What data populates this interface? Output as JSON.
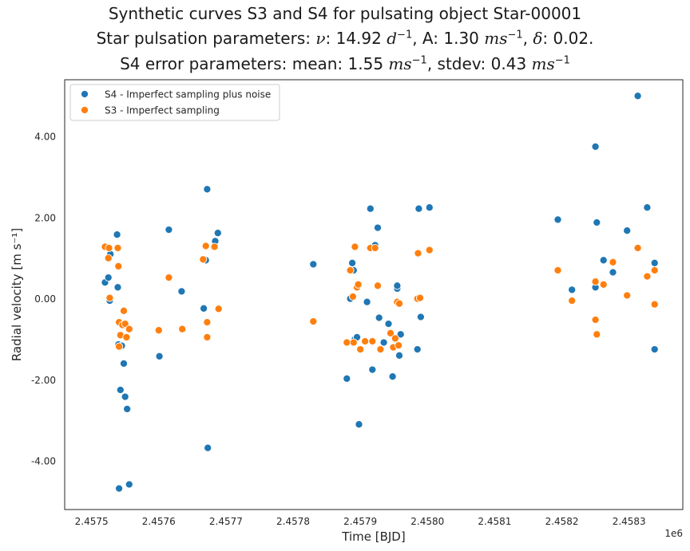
{
  "chart_data": {
    "type": "scatter",
    "title": {
      "line1": "Synthetic curves S3 and S4 for pulsating object Star-00001",
      "line2_prefix": "Star pulsation parameters: ",
      "nu_symbol": "ν",
      "nu_value": ": 14.92 ",
      "unit_d": "d",
      "exp": "−1",
      "amp_label": ", A: 1.30 ",
      "unit_ms": "ms",
      "delta_symbol": "δ",
      "delta_value": ": 0.02.",
      "line3_prefix": "S4 error parameters: mean: 1.55 ",
      "stdev_label": ", stdev: 0.43 "
    },
    "xlabel": "Time [BJD]",
    "ylabel": "Radial velocity [m s⁻¹]",
    "x_offset_label": "1e6",
    "xlim": [
      2.45746,
      2.45838
    ],
    "ylim": [
      -5.2,
      5.4
    ],
    "x_ticks": [
      2.4575,
      2.4576,
      2.4577,
      2.4578,
      2.4579,
      2.458,
      2.4581,
      2.4582,
      2.4583
    ],
    "y_ticks": [
      -4.0,
      -2.0,
      0.0,
      2.0,
      4.0
    ],
    "grid": false,
    "legend_position": "top-left",
    "series": [
      {
        "name": "S4 - Imperfect sampling plus noise",
        "color": "#1f77b4",
        "points": [
          [
            2.45752,
            0.4
          ],
          [
            2.457525,
            0.52
          ],
          [
            2.457527,
            -0.05
          ],
          [
            2.457528,
            1.1
          ],
          [
            2.457538,
            1.58
          ],
          [
            2.457539,
            0.28
          ],
          [
            2.45754,
            -1.13
          ],
          [
            2.457541,
            -4.68
          ],
          [
            2.457543,
            -2.25
          ],
          [
            2.457545,
            -1.16
          ],
          [
            2.457548,
            -1.6
          ],
          [
            2.45755,
            -2.42
          ],
          [
            2.457553,
            -2.72
          ],
          [
            2.457556,
            -4.58
          ],
          [
            2.457601,
            -1.42
          ],
          [
            2.457615,
            1.7
          ],
          [
            2.457634,
            0.18
          ],
          [
            2.457667,
            -0.24
          ],
          [
            2.45767,
            0.95
          ],
          [
            2.457672,
            2.7
          ],
          [
            2.457673,
            -3.68
          ],
          [
            2.457684,
            1.42
          ],
          [
            2.457688,
            1.62
          ],
          [
            2.45783,
            0.85
          ],
          [
            2.45788,
            -1.97
          ],
          [
            2.457885,
            0.0
          ],
          [
            2.457888,
            0.88
          ],
          [
            2.45789,
            0.7
          ],
          [
            2.457892,
            -1.0
          ],
          [
            2.457895,
            -0.95
          ],
          [
            2.457898,
            -3.1
          ],
          [
            2.45791,
            -0.08
          ],
          [
            2.457915,
            2.22
          ],
          [
            2.457918,
            -1.75
          ],
          [
            2.457922,
            1.32
          ],
          [
            2.457926,
            1.75
          ],
          [
            2.457928,
            -0.47
          ],
          [
            2.457935,
            -1.08
          ],
          [
            2.457942,
            -0.62
          ],
          [
            2.457948,
            -1.92
          ],
          [
            2.457952,
            -1.0
          ],
          [
            2.457955,
            0.25
          ],
          [
            2.457955,
            0.32
          ],
          [
            2.457958,
            -1.4
          ],
          [
            2.45796,
            -0.88
          ],
          [
            2.457985,
            -1.25
          ],
          [
            2.457987,
            2.22
          ],
          [
            2.45799,
            -0.45
          ],
          [
            2.458003,
            2.25
          ],
          [
            2.458194,
            1.95
          ],
          [
            2.458215,
            0.22
          ],
          [
            2.45825,
            0.28
          ],
          [
            2.45825,
            3.75
          ],
          [
            2.458252,
            1.88
          ],
          [
            2.458262,
            0.95
          ],
          [
            2.458276,
            0.65
          ],
          [
            2.458297,
            1.68
          ],
          [
            2.458313,
            5.0
          ],
          [
            2.458327,
            2.25
          ],
          [
            2.458338,
            0.88
          ],
          [
            2.458338,
            -1.25
          ]
        ]
      },
      {
        "name": "S3 - Imperfect sampling",
        "color": "#ff7f0e",
        "points": [
          [
            2.45752,
            1.28
          ],
          [
            2.457525,
            1.0
          ],
          [
            2.457526,
            1.25
          ],
          [
            2.457527,
            0.02
          ],
          [
            2.457539,
            1.25
          ],
          [
            2.45754,
            0.8
          ],
          [
            2.457541,
            -0.58
          ],
          [
            2.457541,
            -1.18
          ],
          [
            2.457543,
            -0.9
          ],
          [
            2.457546,
            -0.65
          ],
          [
            2.457548,
            -0.3
          ],
          [
            2.45755,
            -0.62
          ],
          [
            2.457552,
            -0.95
          ],
          [
            2.457556,
            -0.75
          ],
          [
            2.4576,
            -0.78
          ],
          [
            2.457615,
            0.52
          ],
          [
            2.457635,
            -0.75
          ],
          [
            2.457666,
            0.97
          ],
          [
            2.45767,
            1.3
          ],
          [
            2.457672,
            -0.58
          ],
          [
            2.457672,
            -0.95
          ],
          [
            2.457683,
            1.28
          ],
          [
            2.457689,
            -0.25
          ],
          [
            2.45783,
            -0.56
          ],
          [
            2.45788,
            -1.08
          ],
          [
            2.457885,
            0.7
          ],
          [
            2.457889,
            0.05
          ],
          [
            2.45789,
            -1.08
          ],
          [
            2.457892,
            1.28
          ],
          [
            2.457895,
            0.28
          ],
          [
            2.457897,
            0.35
          ],
          [
            2.4579,
            -1.25
          ],
          [
            2.457907,
            -1.05
          ],
          [
            2.457915,
            1.25
          ],
          [
            2.457918,
            -1.05
          ],
          [
            2.457922,
            1.25
          ],
          [
            2.457926,
            0.32
          ],
          [
            2.45793,
            -1.25
          ],
          [
            2.457945,
            -0.85
          ],
          [
            2.457949,
            -1.2
          ],
          [
            2.457952,
            -0.98
          ],
          [
            2.457955,
            -0.08
          ],
          [
            2.457957,
            -1.15
          ],
          [
            2.457958,
            -0.12
          ],
          [
            2.457985,
            0.0
          ],
          [
            2.457986,
            1.12
          ],
          [
            2.457989,
            0.02
          ],
          [
            2.458003,
            1.2
          ],
          [
            2.458194,
            0.7
          ],
          [
            2.458215,
            -0.05
          ],
          [
            2.45825,
            0.42
          ],
          [
            2.45825,
            -0.52
          ],
          [
            2.458252,
            -0.88
          ],
          [
            2.458262,
            0.35
          ],
          [
            2.458276,
            0.9
          ],
          [
            2.458297,
            0.08
          ],
          [
            2.458313,
            1.25
          ],
          [
            2.458327,
            0.55
          ],
          [
            2.458338,
            0.7
          ],
          [
            2.458338,
            -0.14
          ]
        ]
      }
    ]
  }
}
